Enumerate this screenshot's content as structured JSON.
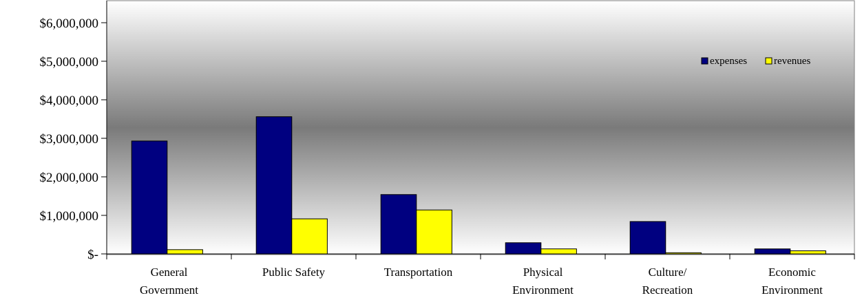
{
  "chart_data": {
    "type": "bar",
    "title": "",
    "xlabel": "",
    "ylabel": "",
    "ylim": [
      0,
      6000000
    ],
    "y_ticks": [
      0,
      1000000,
      2000000,
      3000000,
      4000000,
      5000000,
      6000000
    ],
    "y_tick_labels": [
      "$-",
      "$1,000,000",
      "$2,000,000",
      "$3,000,000",
      "$4,000,000",
      "$5,000,000",
      "$6,000,000"
    ],
    "categories": [
      [
        "General",
        "Government"
      ],
      [
        "Public Safety"
      ],
      [
        "Transportation"
      ],
      [
        "Physical",
        "Environment"
      ],
      [
        "Culture/",
        "Recreation"
      ],
      [
        "Economic",
        "Environment"
      ]
    ],
    "series": [
      {
        "name": "expenses",
        "color": "#000080",
        "values": [
          2930000,
          3560000,
          1540000,
          290000,
          840000,
          130000
        ]
      },
      {
        "name": "revenues",
        "color": "#ffff00",
        "values": [
          110000,
          910000,
          1140000,
          130000,
          30000,
          80000
        ]
      }
    ],
    "grid": false,
    "legend": "top-right",
    "plot_background": "gradient-white-gray-white"
  }
}
